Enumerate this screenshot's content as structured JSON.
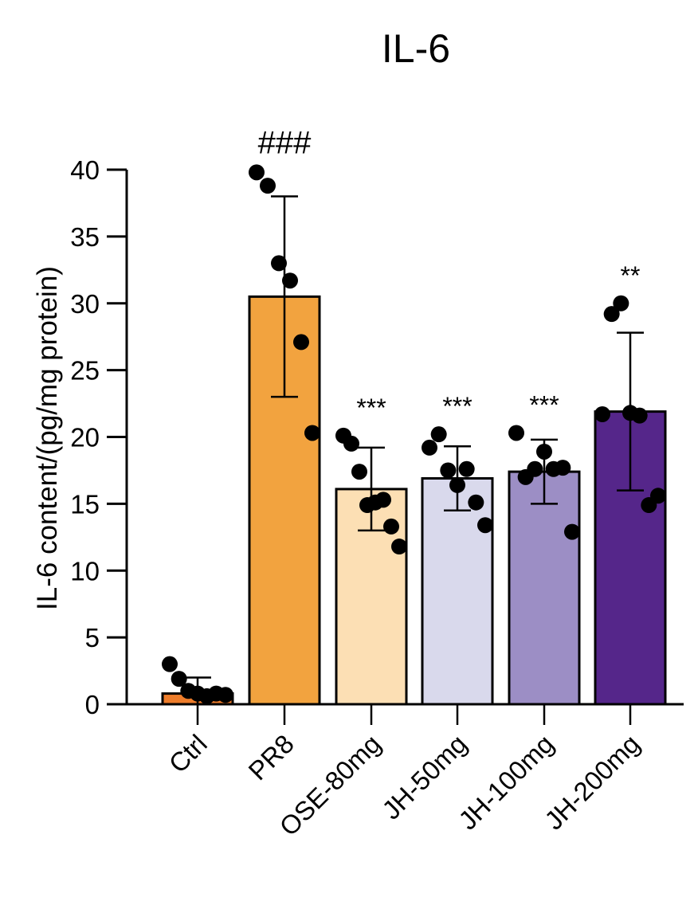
{
  "chart_data": {
    "type": "bar",
    "title": "IL-6",
    "ylabel": "IL-6 content/(pg/mg protein)",
    "xlabel": "",
    "ylim": [
      0,
      40
    ],
    "yticks": [
      0,
      5,
      10,
      15,
      20,
      25,
      30,
      35,
      40
    ],
    "grid": false,
    "categories": [
      "Ctrl",
      "PR8",
      "OSE-80mg",
      "JH-50mg",
      "JH-100mg",
      "JH-200mg"
    ],
    "means": [
      0.8,
      30.5,
      16.1,
      16.9,
      17.4,
      21.9
    ],
    "sd": [
      1.2,
      7.5,
      3.1,
      2.4,
      2.4,
      5.9
    ],
    "colors": [
      "#ee7d2b",
      "#f2a33f",
      "#fcdfb4",
      "#d9d9ec",
      "#9c8ec5",
      "#55268a"
    ],
    "annotations": [
      "",
      "###",
      "***",
      "***",
      "***",
      "**"
    ],
    "points": [
      [
        3.0,
        1.9,
        1.0,
        0.8,
        0.6,
        0.8,
        0.7
      ],
      [
        39.8,
        38.8,
        33.0,
        31.7,
        27.1,
        20.3
      ],
      [
        20.1,
        19.5,
        17.4,
        14.9,
        15.1,
        15.3,
        13.3,
        11.8
      ],
      [
        19.2,
        20.2,
        17.5,
        16.4,
        17.6,
        15.1,
        13.4
      ],
      [
        20.3,
        17.0,
        17.6,
        18.9,
        17.6,
        17.7,
        12.9
      ],
      [
        21.7,
        29.2,
        30.0,
        21.8,
        21.6,
        14.9,
        15.6
      ]
    ]
  }
}
